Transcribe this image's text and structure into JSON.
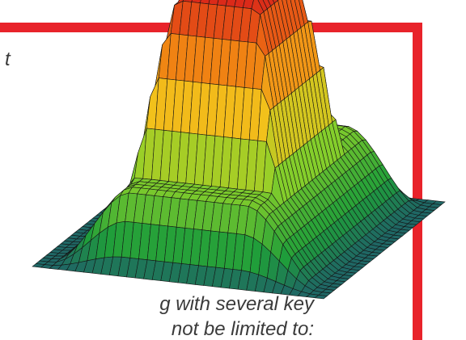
{
  "image": {
    "subject": "3d-surface-plot",
    "colormap": [
      "#1e2f8f",
      "#1f9e3a",
      "#8bd12a",
      "#f2c21b",
      "#f07a12",
      "#d8211a"
    ],
    "frame_color": "#e8232a",
    "mesh_color": "#151515"
  },
  "text_fragments": {
    "top_right": "t",
    "bottom_line_1": "g with several key",
    "bottom_line_2": "not be limited to:"
  }
}
